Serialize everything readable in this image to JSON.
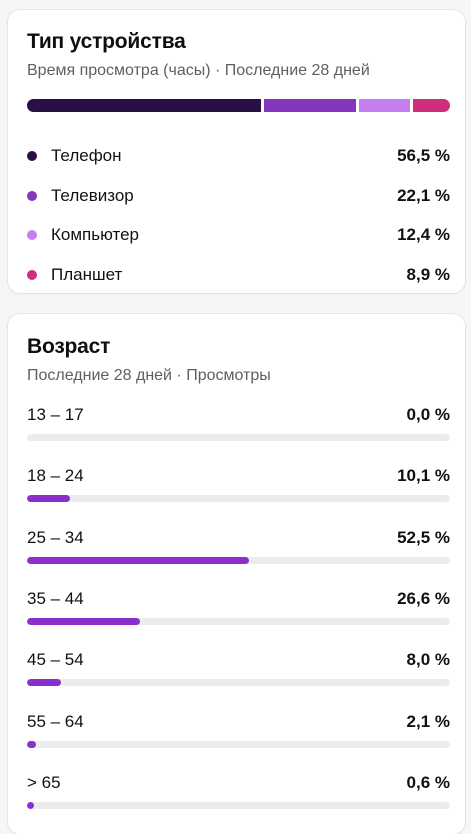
{
  "colors": {
    "phone": "#2a0f45",
    "tv": "#8237be",
    "computer": "#c57ef0",
    "tablet": "#cf2e7d",
    "age_bar": "#8a2fcd",
    "track": "#ececee"
  },
  "device_card": {
    "title": "Тип устройства",
    "subtitle": "Время просмотра (часы) · Последние 28 дней"
  },
  "age_card": {
    "title": "Возраст",
    "subtitle": "Последние 28 дней · Просмотры"
  },
  "chart_data": [
    {
      "type": "bar",
      "stacked": true,
      "title": "Тип устройства",
      "subtitle": "Время просмотра (часы) · Последние 28 дней",
      "legend": "below",
      "series": [
        {
          "name": "Телефон",
          "value": 56.5,
          "display": "56,5 %",
          "color": "#2a0f45"
        },
        {
          "name": "Телевизор",
          "value": 22.1,
          "display": "22,1 %",
          "color": "#8237be"
        },
        {
          "name": "Компьютер",
          "value": 12.4,
          "display": "12,4 %",
          "color": "#c57ef0"
        },
        {
          "name": "Планшет",
          "value": 8.9,
          "display": "8,9 %",
          "color": "#cf2e7d"
        }
      ]
    },
    {
      "type": "bar",
      "orientation": "horizontal",
      "title": "Возраст",
      "subtitle": "Последние 28 дней · Просмотры",
      "xlim": [
        0,
        100
      ],
      "categories": [
        "13 – 17",
        "18 – 24",
        "25 – 34",
        "35 – 44",
        "45 – 54",
        "55 – 64",
        "> 65"
      ],
      "values": [
        0.0,
        10.1,
        52.5,
        26.6,
        8.0,
        2.1,
        0.6
      ],
      "labels": [
        "0,0 %",
        "10,1 %",
        "52,5 %",
        "26,6 %",
        "8,0 %",
        "2,1 %",
        "0,6 %"
      ]
    }
  ]
}
